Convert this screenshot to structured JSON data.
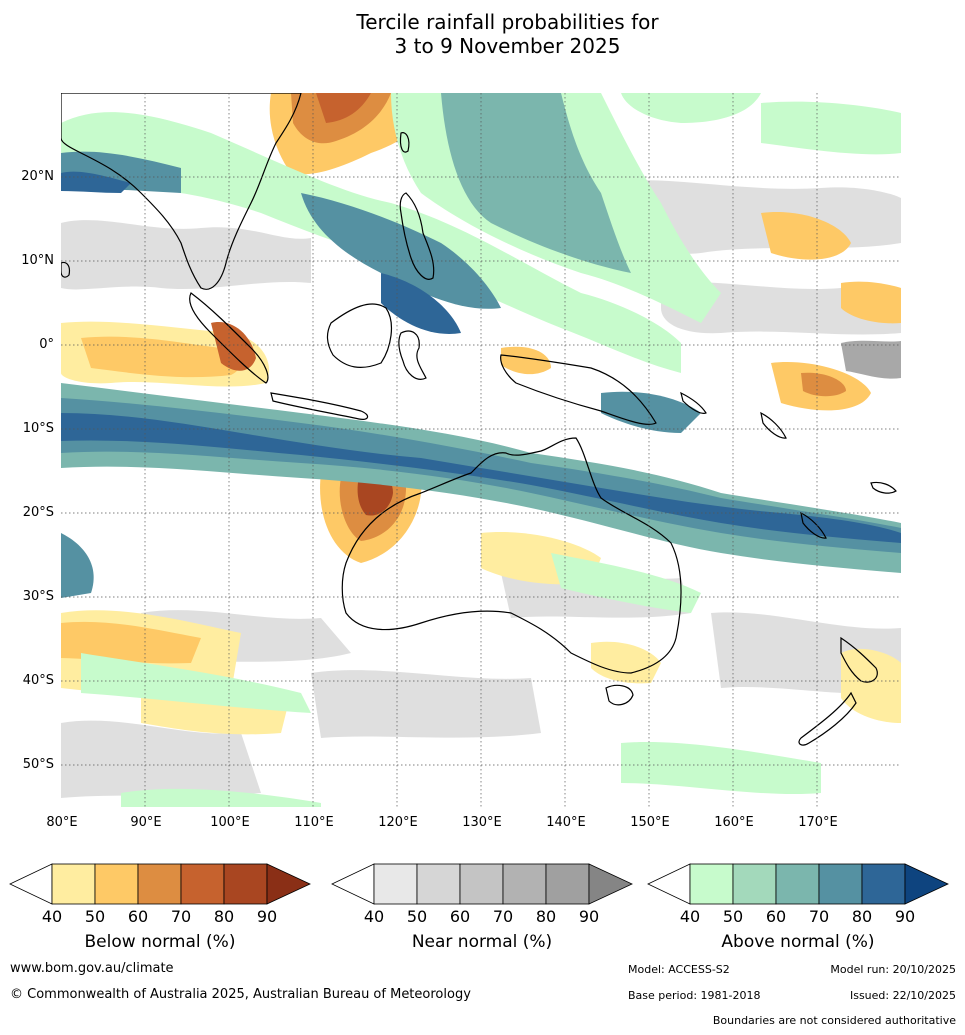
{
  "title": {
    "line1": "Tercile rainfall probabilities for",
    "line2": "3 to 9 November 2025"
  },
  "axes": {
    "lat_labels": [
      "20°N",
      "10°N",
      "0°",
      "10°S",
      "20°S",
      "30°S",
      "40°S",
      "50°S"
    ],
    "lon_labels": [
      "80°E",
      "90°E",
      "100°E",
      "110°E",
      "120°E",
      "130°E",
      "140°E",
      "150°E",
      "160°E",
      "170°E"
    ]
  },
  "legends": [
    {
      "title": "Below normal (%)",
      "ticks": [
        "40",
        "50",
        "60",
        "70",
        "80",
        "90"
      ],
      "colors": [
        "#ffffff",
        "#ffeda0",
        "#fec966",
        "#dd8d41",
        "#c6622e",
        "#a94621",
        "#8a2f16"
      ]
    },
    {
      "title": "Near normal (%)",
      "ticks": [
        "40",
        "50",
        "60",
        "70",
        "80",
        "90"
      ],
      "colors": [
        "#ffffff",
        "#e8e8e8",
        "#d6d6d6",
        "#c4c4c4",
        "#b2b2b2",
        "#a0a0a0",
        "#858585"
      ]
    },
    {
      "title": "Above normal (%)",
      "ticks": [
        "40",
        "50",
        "60",
        "70",
        "80",
        "90"
      ],
      "colors": [
        "#ffffff",
        "#c7fbcc",
        "#a3d9bb",
        "#7bb6ad",
        "#5591a2",
        "#2e6697",
        "#0e447f"
      ]
    }
  ],
  "footer": {
    "website": "www.bom.gov.au/climate",
    "copyright": "© Commonwealth of Australia 2025, Australian Bureau of Meteorology",
    "model": "Model: ACCESS-S2",
    "model_run": "Model run: 20/10/2025",
    "base_period": "Base period: 1981-2018",
    "issued": "Issued: 22/10/2025",
    "disclaimer": "Boundaries are not considered authoritative"
  }
}
